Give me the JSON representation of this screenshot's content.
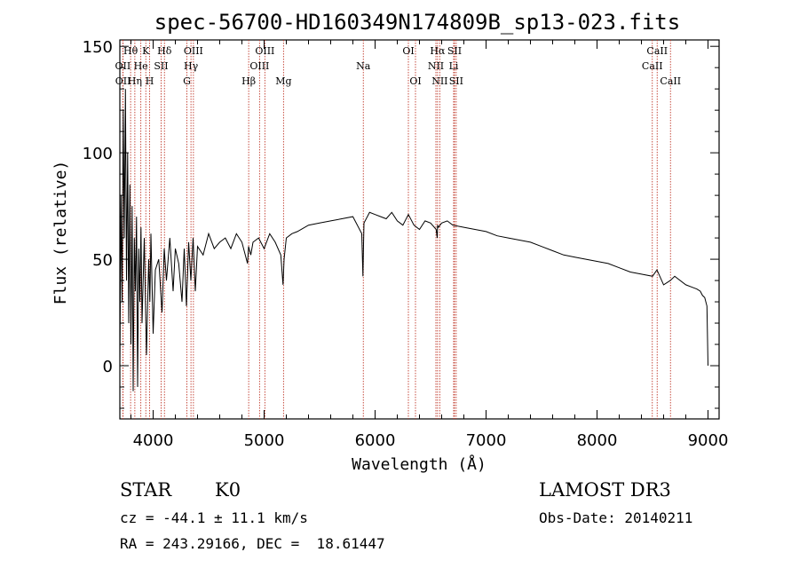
{
  "chart_data": {
    "type": "line",
    "title": "spec-56700-HD160349N174809B_sp13-023.fits",
    "xlabel": "Wavelength (Å)",
    "ylabel": "Flux (relative)",
    "xlim": [
      3700,
      9100
    ],
    "ylim": [
      -25,
      153
    ],
    "xticks": [
      4000,
      5000,
      6000,
      7000,
      8000,
      9000
    ],
    "yticks": [
      0,
      50,
      100,
      150
    ],
    "series": [
      {
        "name": "flux",
        "x": [
          3700,
          3710,
          3720,
          3730,
          3740,
          3750,
          3760,
          3770,
          3780,
          3790,
          3800,
          3810,
          3820,
          3830,
          3840,
          3850,
          3860,
          3870,
          3880,
          3890,
          3900,
          3920,
          3940,
          3960,
          3970,
          3980,
          4000,
          4020,
          4050,
          4080,
          4100,
          4120,
          4150,
          4180,
          4200,
          4230,
          4260,
          4280,
          4300,
          4320,
          4340,
          4360,
          4380,
          4400,
          4450,
          4500,
          4550,
          4600,
          4650,
          4700,
          4750,
          4800,
          4850,
          4860,
          4880,
          4900,
          4950,
          5000,
          5050,
          5100,
          5150,
          5170,
          5180,
          5200,
          5250,
          5300,
          5400,
          5500,
          5600,
          5700,
          5800,
          5880,
          5890,
          5895,
          5900,
          5950,
          6000,
          6050,
          6100,
          6150,
          6200,
          6250,
          6300,
          6350,
          6400,
          6450,
          6500,
          6550,
          6560,
          6563,
          6570,
          6600,
          6650,
          6700,
          6800,
          6900,
          7000,
          7100,
          7200,
          7300,
          7400,
          7500,
          7600,
          7700,
          7800,
          7900,
          8000,
          8100,
          8200,
          8300,
          8400,
          8500,
          8540,
          8600,
          8660,
          8700,
          8800,
          8850,
          8900,
          8930,
          8950,
          8970,
          8990,
          9000
        ],
        "y": [
          0,
          80,
          30,
          120,
          60,
          130,
          40,
          100,
          20,
          85,
          10,
          75,
          -12,
          60,
          35,
          70,
          -10,
          55,
          30,
          65,
          20,
          60,
          5,
          50,
          30,
          62,
          15,
          45,
          50,
          25,
          55,
          40,
          60,
          35,
          55,
          48,
          30,
          55,
          28,
          58,
          40,
          60,
          35,
          56,
          52,
          62,
          55,
          58,
          60,
          55,
          62,
          58,
          48,
          56,
          52,
          58,
          60,
          55,
          62,
          58,
          52,
          38,
          50,
          60,
          62,
          63,
          66,
          67,
          68,
          69,
          70,
          62,
          42,
          55,
          67,
          72,
          71,
          70,
          69,
          72,
          68,
          66,
          71,
          66,
          64,
          68,
          67,
          64,
          60,
          66,
          65,
          67,
          68,
          66,
          65,
          64,
          63,
          61,
          60,
          59,
          58,
          56,
          54,
          52,
          51,
          50,
          49,
          48,
          46,
          44,
          43,
          42,
          45,
          38,
          40,
          42,
          38,
          37,
          36,
          35,
          33,
          32,
          28,
          0
        ]
      }
    ],
    "lines": [
      {
        "name": "Hθ",
        "x": 3797,
        "row": 1
      },
      {
        "name": "OII",
        "x": 3727,
        "row": 2
      },
      {
        "name": "OII",
        "x": 3729,
        "row": 3
      },
      {
        "name": "He",
        "x": 3889,
        "row": 2
      },
      {
        "name": "Hη",
        "x": 3835,
        "row": 3
      },
      {
        "name": "K",
        "x": 3934,
        "row": 1
      },
      {
        "name": "H",
        "x": 3968,
        "row": 3
      },
      {
        "name": "SII",
        "x": 4072,
        "row": 2
      },
      {
        "name": "Hδ",
        "x": 4102,
        "row": 1
      },
      {
        "name": "OIII",
        "x": 4363,
        "row": 1
      },
      {
        "name": "Hγ",
        "x": 4341,
        "row": 2
      },
      {
        "name": "G",
        "x": 4304,
        "row": 3
      },
      {
        "name": "Hβ",
        "x": 4861,
        "row": 3
      },
      {
        "name": "OIII",
        "x": 4959,
        "row": 2
      },
      {
        "name": "OIII",
        "x": 5007,
        "row": 1
      },
      {
        "name": "Mg",
        "x": 5175,
        "row": 3
      },
      {
        "name": "Na",
        "x": 5894,
        "row": 2
      },
      {
        "name": "OI",
        "x": 6300,
        "row": 1
      },
      {
        "name": "OI",
        "x": 6364,
        "row": 3
      },
      {
        "name": "Hα",
        "x": 6563,
        "row": 1
      },
      {
        "name": "NII",
        "x": 6548,
        "row": 2
      },
      {
        "name": "NII",
        "x": 6583,
        "row": 3
      },
      {
        "name": "SII",
        "x": 6716,
        "row": 1
      },
      {
        "name": "Li",
        "x": 6708,
        "row": 2
      },
      {
        "name": "SII",
        "x": 6731,
        "row": 3
      },
      {
        "name": "CaII",
        "x": 8542,
        "row": 1
      },
      {
        "name": "CaII",
        "x": 8498,
        "row": 2
      },
      {
        "name": "CaII",
        "x": 8662,
        "row": 3
      }
    ]
  },
  "info": {
    "class": "STAR",
    "subclass": "K0",
    "survey": "LAMOST DR3",
    "cz": "cz = -44.1 ± 11.1 km/s",
    "obs_date": "Obs-Date: 20140211",
    "coords": "RA = 243.29166, DEC =  18.61447"
  },
  "colors": {
    "line_marker": "#c0392b",
    "spectrum": "#000000"
  }
}
